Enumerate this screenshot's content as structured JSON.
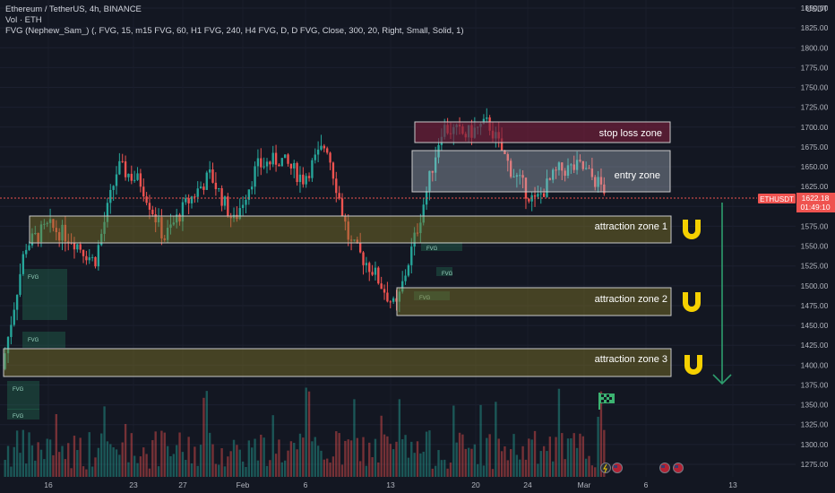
{
  "header": {
    "title": "Ethereum / TetherUS, 4h, BINANCE",
    "volume": "Vol · ETH",
    "indicator": "FVG (Nephew_Sam_) (, FVG, 15, m15 FVG, 60, H1 FVG, 240, H4 FVG, D, D FVG, Close, 300, 20, Right, Small, Solid, 1)"
  },
  "price_axis": {
    "currency": "USDT",
    "ticks": [
      "1850.00",
      "1825.00",
      "1800.00",
      "1775.00",
      "1750.00",
      "1725.00",
      "1700.00",
      "1675.00",
      "1650.00",
      "1625.00",
      "1600.00",
      "1575.00",
      "1550.00",
      "1525.00",
      "1500.00",
      "1475.00",
      "1450.00",
      "1425.00",
      "1400.00",
      "1375.00",
      "1350.00",
      "1325.00",
      "1300.00",
      "1275.00"
    ],
    "last_price_label": "1622.18",
    "countdown": "01:49:10",
    "symbol_tag": "ETHUSDT"
  },
  "time_axis": {
    "labels": [
      "16",
      "23",
      "27",
      "Feb",
      "6",
      "13",
      "20",
      "24",
      "Mar",
      "6",
      "13"
    ]
  },
  "zones": {
    "stop_loss": "stop loss zone",
    "entry": "entry zone",
    "attraction_1": "attraction zone 1",
    "attraction_2": "attraction zone 2",
    "attraction_3": "attraction zone 3"
  },
  "fvg_label": "FVG",
  "icons": [
    "magnet-icon",
    "magnet-icon",
    "magnet-icon",
    "checkered-flag-icon",
    "down-arrow-icon"
  ],
  "colors": {
    "background": "#131722",
    "up": "#26a69a",
    "down": "#ef5350",
    "zone_fill": "rgba(130,120,40,0.45)",
    "stop_fill": "rgba(120,30,60,0.65)",
    "entry_fill": "rgba(190,200,215,0.35)",
    "magnet": "#f5d000",
    "arrow": "#2e9e6e"
  },
  "chart_data": {
    "type": "candlestick",
    "symbol": "ETHUSDT",
    "timeframe": "4h",
    "last_price": 1622.18,
    "ylim": [
      1262,
      1862
    ],
    "price_path": [
      {
        "date": "Jan 12",
        "close": 1395
      },
      {
        "date": "Jan 14",
        "close": 1550
      },
      {
        "date": "Jan 16",
        "close": 1575
      },
      {
        "date": "Jan 18",
        "close": 1560
      },
      {
        "date": "Jan 20",
        "close": 1530
      },
      {
        "date": "Jan 21",
        "close": 1650
      },
      {
        "date": "Jan 23",
        "close": 1630
      },
      {
        "date": "Jan 25",
        "close": 1560
      },
      {
        "date": "Jan 27",
        "close": 1605
      },
      {
        "date": "Jan 29",
        "close": 1640
      },
      {
        "date": "Jan 31",
        "close": 1580
      },
      {
        "date": "Feb 2",
        "close": 1650
      },
      {
        "date": "Feb 4",
        "close": 1660
      },
      {
        "date": "Feb 6",
        "close": 1635
      },
      {
        "date": "Feb 8",
        "close": 1680
      },
      {
        "date": "Feb 9",
        "close": 1555
      },
      {
        "date": "Feb 11",
        "close": 1520
      },
      {
        "date": "Feb 13",
        "close": 1470
      },
      {
        "date": "Feb 15",
        "close": 1580
      },
      {
        "date": "Feb 16",
        "close": 1700
      },
      {
        "date": "Feb 18",
        "close": 1690
      },
      {
        "date": "Feb 20",
        "close": 1705
      },
      {
        "date": "Feb 22",
        "close": 1645
      },
      {
        "date": "Feb 24",
        "close": 1605
      },
      {
        "date": "Feb 26",
        "close": 1645
      },
      {
        "date": "Feb 28",
        "close": 1650
      },
      {
        "date": "Mar 1",
        "close": 1622
      }
    ],
    "zones_price": {
      "stop_loss": [
        1700,
        1725
      ],
      "entry": [
        1630,
        1680
      ],
      "attraction_1": [
        1565,
        1600
      ],
      "attraction_2": [
        1470,
        1505
      ],
      "attraction_3": [
        1390,
        1425
      ]
    }
  }
}
